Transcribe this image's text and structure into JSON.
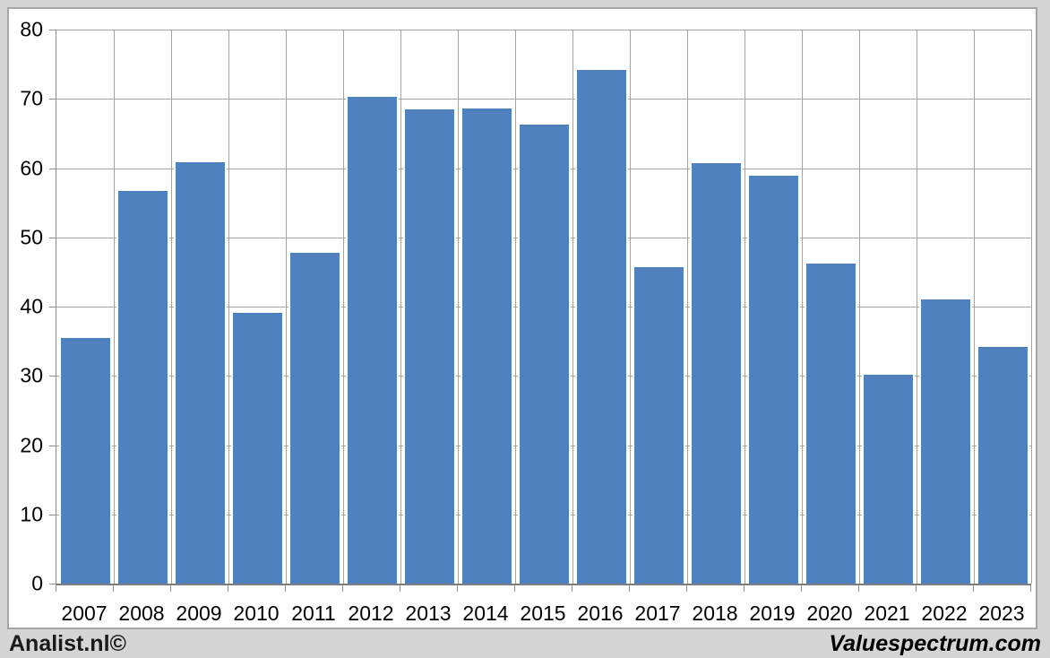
{
  "footer": {
    "left": "Analist.nl©",
    "right": "Valuespectrum.com"
  },
  "colors": {
    "bar_fill": "#4f81bd",
    "bar_edge": "#ffffff",
    "gridline": "#a3a3a3",
    "axis": "#8e8e8e",
    "panel_background": "#ffffff",
    "panel_border": "#a6a6a6",
    "page_background": "#d5d5d5",
    "text": "#000000"
  },
  "chart_data": {
    "type": "bar",
    "title": "",
    "xlabel": "",
    "ylabel": "",
    "categories": [
      "2007",
      "2008",
      "2009",
      "2010",
      "2011",
      "2012",
      "2013",
      "2014",
      "2015",
      "2016",
      "2017",
      "2018",
      "2019",
      "2020",
      "2021",
      "2022",
      "2023"
    ],
    "values": [
      35.7,
      57.0,
      61.1,
      39.4,
      48.0,
      70.6,
      68.7,
      68.9,
      66.5,
      74.4,
      46.0,
      61.0,
      59.1,
      46.5,
      30.4,
      41.3,
      34.5
    ],
    "ylim": [
      0,
      80
    ],
    "ytick_step": 10,
    "ytick_labels": [
      "0",
      "10",
      "20",
      "30",
      "40",
      "50",
      "60",
      "70",
      "80"
    ],
    "grid": true,
    "legend": false
  }
}
